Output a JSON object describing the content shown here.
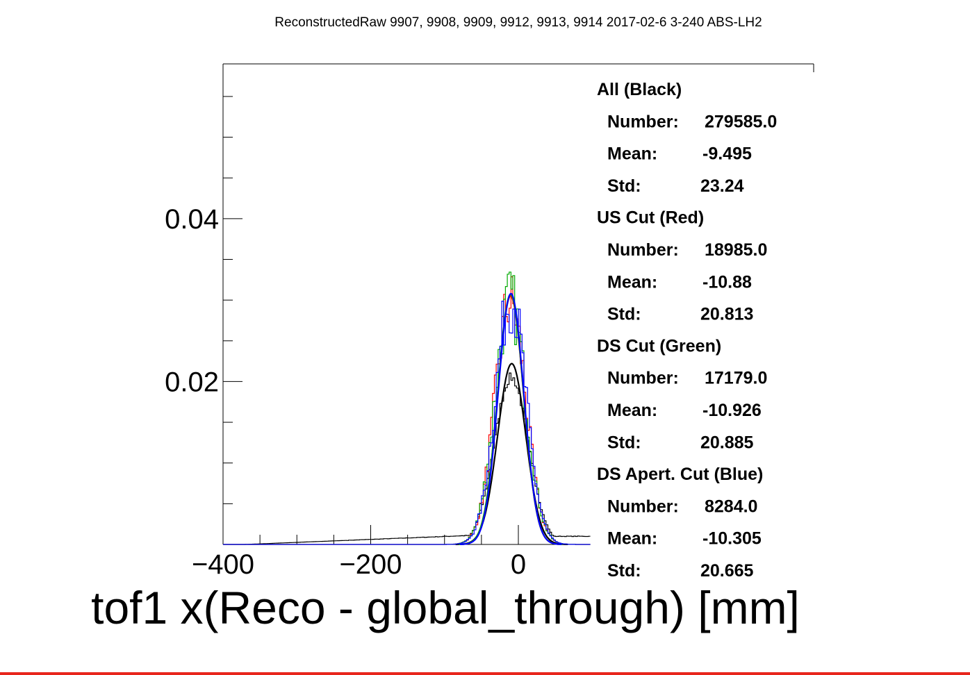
{
  "chart_data": {
    "type": "line",
    "title": "ReconstructedRaw 9907, 9908, 9909, 9912, 9913, 9914 2017-02-6 3-240 ABS-LH2",
    "xlabel": "tof1 x(Reco - global_through) [mm]",
    "ylabel": "",
    "xlim": [
      -400,
      400
    ],
    "ylim": [
      0,
      0.059
    ],
    "x_ticks": [
      {
        "value": -400,
        "label": "−400"
      },
      {
        "value": -200,
        "label": "−200"
      },
      {
        "value": 0,
        "label": "0"
      }
    ],
    "y_ticks": [
      {
        "value": 0.02,
        "label": "0.02"
      },
      {
        "value": 0.04,
        "label": "0.04"
      }
    ],
    "grid": false,
    "series": [
      {
        "name": "All (Black)",
        "color": "#000000",
        "histogram": {
          "mean": -9.495,
          "std": 23.24,
          "peak": 0.0205,
          "tail_left": 0.0012,
          "tail_right": 0.001
        },
        "fit": {
          "mean": -9.0,
          "sigma": 19.0,
          "peak": 0.0222
        }
      },
      {
        "name": "US Cut (Red)",
        "color": "#ff0000",
        "histogram": {
          "mean": -10.88,
          "std": 20.813,
          "peak": 0.0298
        },
        "fit": {
          "mean": -10.5,
          "sigma": 17.5,
          "peak": 0.0305
        }
      },
      {
        "name": "DS Cut (Green)",
        "color": "#00aa00",
        "histogram": {
          "mean": -10.926,
          "std": 20.885,
          "peak": 0.03
        },
        "fit": {
          "mean": -10.5,
          "sigma": 17.5,
          "peak": 0.0307
        }
      },
      {
        "name": "DS Apert. Cut (Blue)",
        "color": "#0000ff",
        "histogram": {
          "mean": -10.305,
          "std": 20.665,
          "peak": 0.0302
        },
        "fit": {
          "mean": -10.0,
          "sigma": 17.3,
          "peak": 0.0308
        }
      }
    ],
    "stats": [
      {
        "header": "All (Black)",
        "number_label": "Number:",
        "number": "279585.0",
        "mean_label": "Mean:",
        "mean": "-9.495",
        "std_label": "Std:",
        "std": "23.24"
      },
      {
        "header": "US Cut (Red)",
        "number_label": "Number:",
        "number": "18985.0",
        "mean_label": "Mean:",
        "mean": "-10.88",
        "std_label": "Std:",
        "std": "20.813"
      },
      {
        "header": "DS Cut (Green)",
        "number_label": "Number:",
        "number": "17179.0",
        "mean_label": "Mean:",
        "mean": "-10.926",
        "std_label": "Std:",
        "std": "20.885"
      },
      {
        "header": "DS Apert. Cut (Blue)",
        "number_label": "Number:",
        "number": "8284.0",
        "mean_label": "Mean:",
        "mean": "-10.305",
        "std_label": "Std:",
        "std": "20.665"
      }
    ]
  }
}
